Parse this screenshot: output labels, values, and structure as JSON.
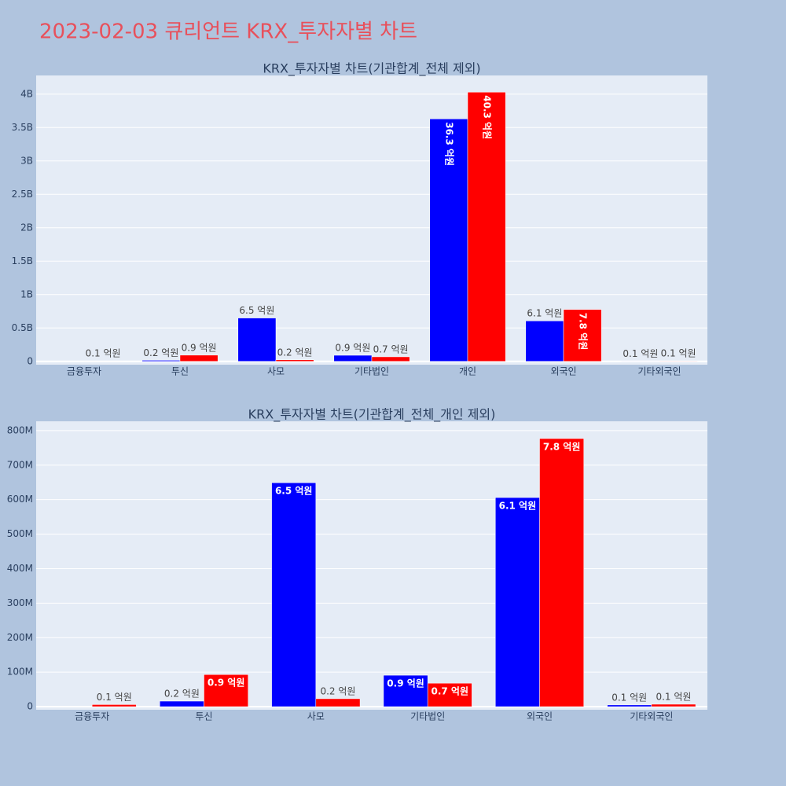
{
  "title": "2023-02-03 큐리언트 KRX_투자자별 차트",
  "chart_data": [
    {
      "type": "bar",
      "title": "KRX_투자자별 차트(기관합계_전체 제외)",
      "categories": [
        "금융투자",
        "투신",
        "사모",
        "기타법인",
        "개인",
        "외국인",
        "기타외국인"
      ],
      "series": [
        {
          "color": "#0000ff",
          "values": [
            null,
            16000000,
            649000000,
            91000000,
            3630000000,
            606000000,
            5000000
          ],
          "value_labels": [
            null,
            "0.2 억원",
            "6.5 억원",
            "0.9 억원",
            "36.3 억원",
            "6.1 억원",
            "0.1 억원"
          ]
        },
        {
          "color": "#ff0000",
          "values": [
            6000000,
            93000000,
            23000000,
            68000000,
            4030000000,
            777000000,
            7000000
          ],
          "value_labels": [
            "0.1 억원",
            "0.9 억원",
            "0.2 억원",
            "0.7 억원",
            "40.3 억원",
            "7.8 억원",
            "0.1 억원"
          ]
        }
      ],
      "ylim": [
        -50000000,
        4280000000
      ],
      "yticks": [
        0,
        {
          "value": 500000000,
          "label": "0.5B"
        },
        {
          "value": 1000000000,
          "label": "1B"
        },
        {
          "value": 1500000000,
          "label": "1.5B"
        },
        {
          "value": 2000000000,
          "label": "2B"
        },
        {
          "value": 2500000000,
          "label": "2.5B"
        },
        {
          "value": 3000000000,
          "label": "3B"
        },
        {
          "value": 3500000000,
          "label": "3.5B"
        },
        {
          "value": 4000000000,
          "label": "4B"
        }
      ],
      "grid": true
    },
    {
      "type": "bar",
      "title": "KRX_투자자별 차트(기관합계_전체_개인 제외)",
      "categories": [
        "금융투자",
        "투신",
        "사모",
        "기타법인",
        "외국인",
        "기타외국인"
      ],
      "series": [
        {
          "color": "#0000ff",
          "values": [
            null,
            16000000,
            649000000,
            91000000,
            606000000,
            5000000
          ],
          "value_labels": [
            null,
            "0.2 억원",
            "6.5 억원",
            "0.9 억원",
            "6.1 억원",
            "0.1 억원"
          ]
        },
        {
          "color": "#ff0000",
          "values": [
            6000000,
            93000000,
            23000000,
            68000000,
            777000000,
            7000000
          ],
          "value_labels": [
            "0.1 억원",
            "0.9 억원",
            "0.2 억원",
            "0.7 억원",
            "7.8 억원",
            "0.1 억원"
          ]
        }
      ],
      "ylim": [
        -9000000,
        827000000
      ],
      "yticks": [
        0,
        {
          "value": 100000000,
          "label": "100M"
        },
        {
          "value": 200000000,
          "label": "200M"
        },
        {
          "value": 300000000,
          "label": "300M"
        },
        {
          "value": 400000000,
          "label": "400M"
        },
        {
          "value": 500000000,
          "label": "500M"
        },
        {
          "value": 600000000,
          "label": "600M"
        },
        {
          "value": 700000000,
          "label": "700M"
        },
        {
          "value": 800000000,
          "label": "800M"
        }
      ],
      "grid": true
    }
  ]
}
